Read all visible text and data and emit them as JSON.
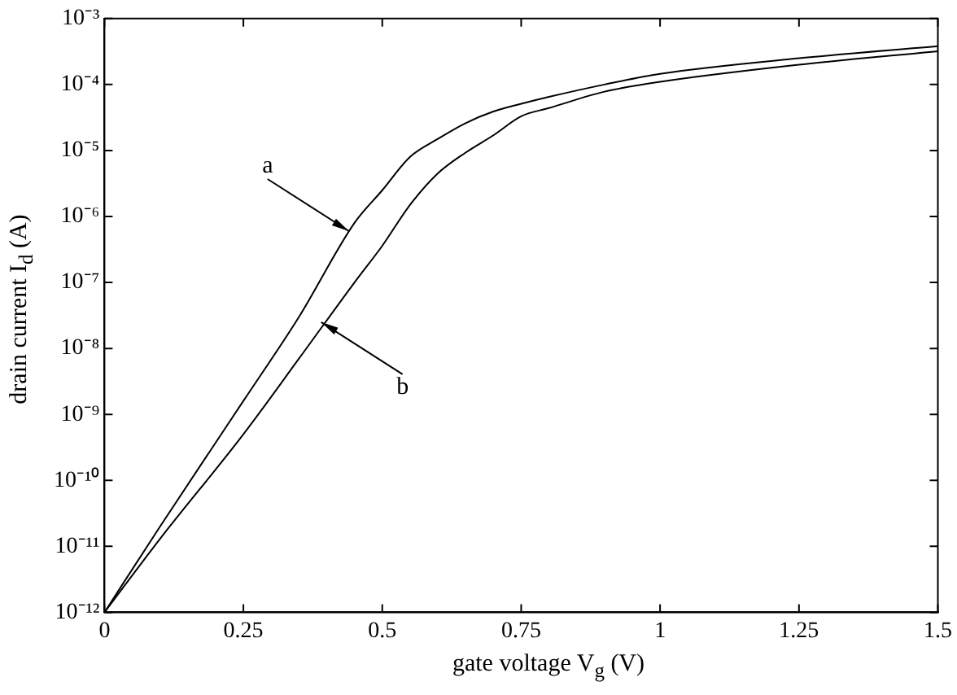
{
  "chart_data": {
    "type": "line",
    "xlabel": "gate voltage  V$_{g}$ (V)",
    "ylabel": "drain current  I$_{d}$ (A)",
    "log": "y",
    "grid": false,
    "legend": false,
    "marker": "none",
    "line_style": "solid",
    "xlim": [
      0,
      1.5
    ],
    "xticks": [
      0,
      0.25,
      0.5,
      0.75,
      1,
      1.25,
      1.5
    ],
    "ylim": [
      1e-12,
      0.001
    ],
    "yticks": [
      {
        "value": 1e-12,
        "label": "10⁻¹²"
      },
      {
        "value": 1e-11,
        "label": "10⁻¹¹"
      },
      {
        "value": 1e-10,
        "label": "10⁻¹⁰"
      },
      {
        "value": 1e-09,
        "label": "10⁻⁹"
      },
      {
        "value": 1e-08,
        "label": "10⁻⁸"
      },
      {
        "value": 1e-07,
        "label": "10⁻⁷"
      },
      {
        "value": 1e-06,
        "label": "10⁻⁶"
      },
      {
        "value": 1e-05,
        "label": "10⁻⁵"
      },
      {
        "value": 0.0001,
        "label": "10⁻⁴"
      },
      {
        "value": 0.001,
        "label": "10⁻³"
      }
    ],
    "series": [
      {
        "color": "#000000",
        "x": [
          0,
          0.1,
          0.25,
          0.35,
          0.45,
          0.5,
          0.55,
          0.6,
          0.65,
          0.7,
          0.75,
          0.8,
          0.9,
          1,
          1.25,
          1.5
        ],
        "values": [
          1e-12,
          2e-11,
          1.6e-09,
          3e-08,
          8e-07,
          2.5e-06,
          8e-06,
          1.5e-05,
          2.6e-05,
          3.9e-05,
          5.1e-05,
          6.5e-05,
          0.0001,
          0.000145,
          0.00025,
          0.00038
        ]
      },
      {
        "color": "#000000",
        "x": [
          0,
          0.1,
          0.25,
          0.35,
          0.45,
          0.5,
          0.55,
          0.6,
          0.65,
          0.7,
          0.75,
          0.8,
          0.9,
          1,
          1.25,
          1.5
        ],
        "values": [
          1e-12,
          1.3e-11,
          5e-10,
          7e-09,
          1e-07,
          3.6e-07,
          1.5e-06,
          4.5e-06,
          9.3e-06,
          1.7e-05,
          3.3e-05,
          4.4e-05,
          7.8e-05,
          0.00011,
          0.0002,
          0.00032
        ]
      }
    ],
    "annotations": [
      {
        "text": "a",
        "x": 0.44,
        "y": 6e-07
      },
      {
        "text": "b",
        "x": 0.39,
        "y": 2.5e-08
      }
    ]
  }
}
